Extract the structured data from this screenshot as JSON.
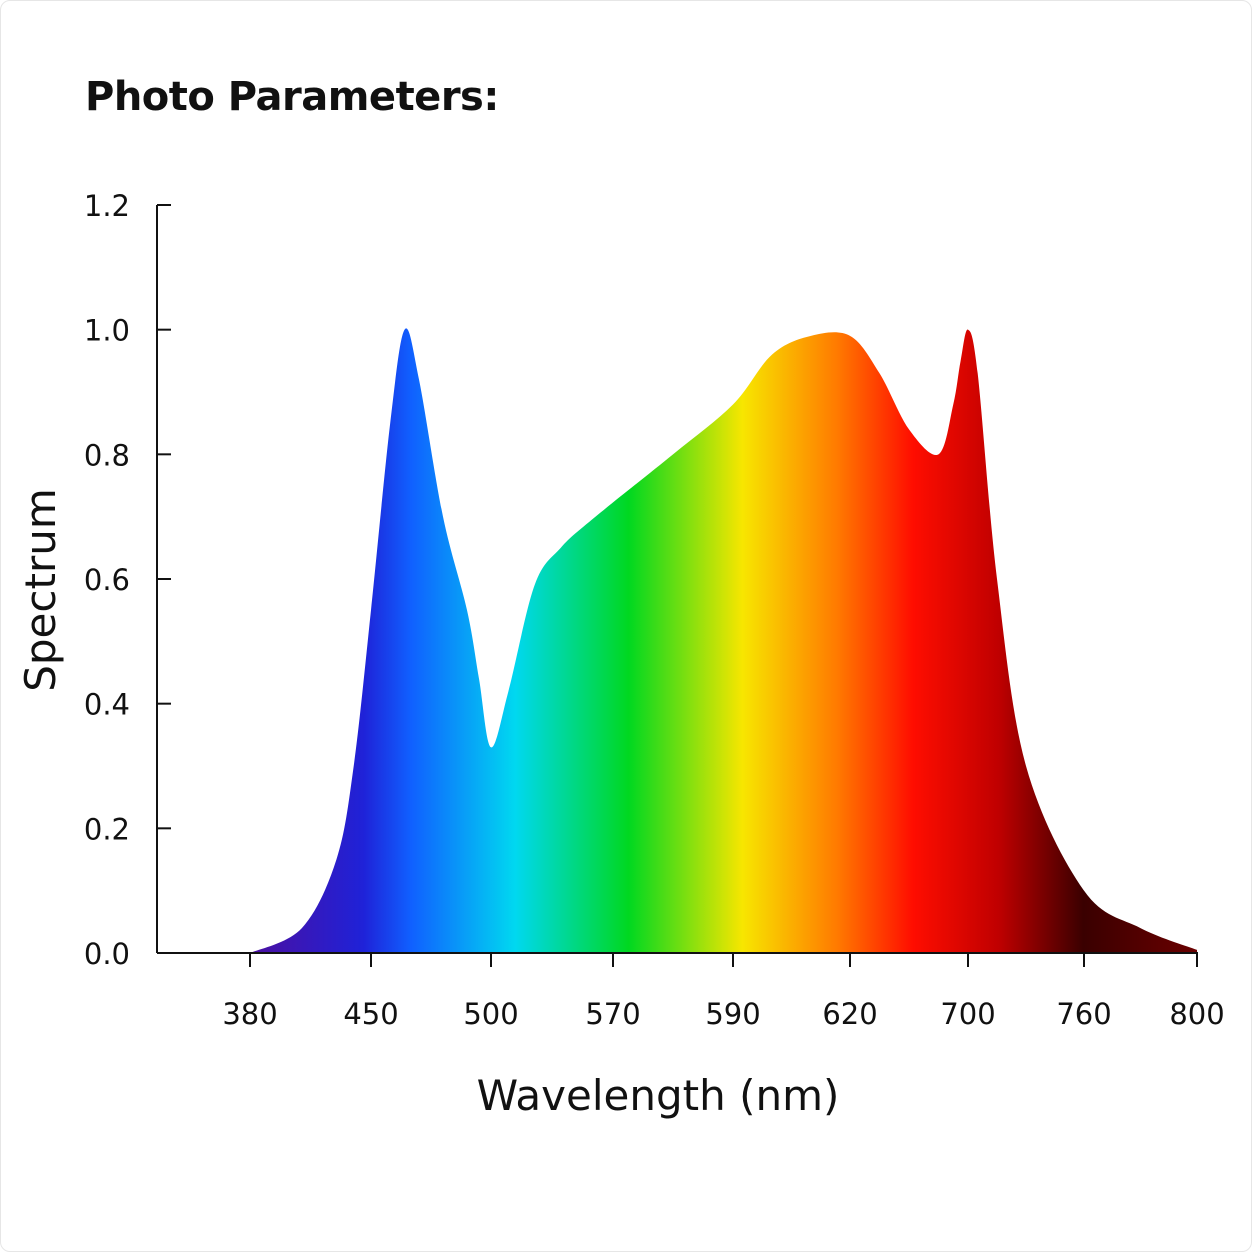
{
  "chart_data": {
    "type": "area",
    "title": "Photo Parameters:",
    "xlabel": "Wavelength (nm)",
    "ylabel": "Spectrum",
    "x_ticks": [
      "380",
      "450",
      "500",
      "570",
      "590",
      "620",
      "700",
      "760",
      "800"
    ],
    "y_ticks": [
      "0.0",
      "0.2",
      "0.4",
      "0.6",
      "0.8",
      "1.0",
      "1.2"
    ],
    "ylim": [
      0,
      1.2
    ],
    "grid": false,
    "legend": "none",
    "fill": "visible-spectrum-gradient",
    "series": [
      {
        "x": [
          "380",
          "410",
          "430",
          "440",
          "450",
          "458",
          "464",
          "470",
          "480",
          "490",
          "495",
          "500",
          "510",
          "525",
          "540",
          "560",
          "580",
          "590",
          "600",
          "610",
          "620",
          "640",
          "660",
          "680",
          "690",
          "695",
          "700",
          "705",
          "715",
          "730",
          "760",
          "780",
          "800"
        ],
        "values": [
          0.0,
          0.04,
          0.15,
          0.3,
          0.55,
          0.85,
          1.0,
          0.92,
          0.7,
          0.55,
          0.44,
          0.33,
          0.42,
          0.59,
          0.65,
          0.7,
          0.8,
          0.88,
          0.96,
          0.99,
          0.99,
          0.93,
          0.84,
          0.8,
          0.88,
          0.95,
          1.0,
          0.93,
          0.6,
          0.3,
          0.1,
          0.04,
          0.005
        ]
      }
    ]
  },
  "colors": {
    "axis": "#111111",
    "spectrum_stops": [
      "#4b0fa0",
      "#1f22d8",
      "#1060ff",
      "#00d8f0",
      "#00d820",
      "#f7e600",
      "#ff7a00",
      "#ff0d00",
      "#c00000",
      "#3a0000",
      "#6a0000"
    ]
  }
}
